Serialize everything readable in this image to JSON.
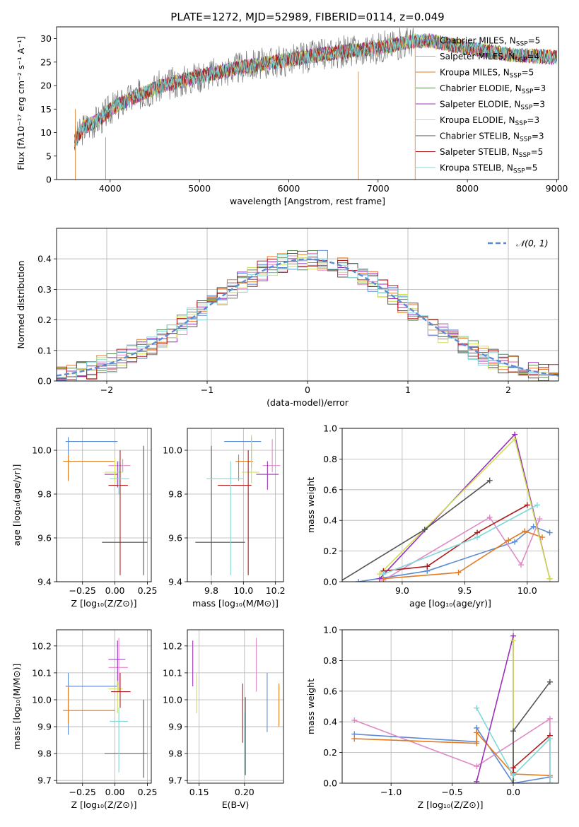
{
  "figure": {
    "title": "PLATE=1272, MJD=52989, FIBERID=0114, z=0.049"
  },
  "models": [
    {
      "name": "Chabrier MILES",
      "nssp": "5",
      "color": "#5b8bd6"
    },
    {
      "name": "Salpeter MILES",
      "nssp": "4",
      "color": "#e08ac8"
    },
    {
      "name": "Kroupa MILES",
      "nssp": "5",
      "color": "#e07b22"
    },
    {
      "name": "Chabrier ELODIE",
      "nssp": "3",
      "color": "#5e8a55"
    },
    {
      "name": "Salpeter ELODIE",
      "nssp": "3",
      "color": "#9b30b8"
    },
    {
      "name": "Kroupa ELODIE",
      "nssp": "3",
      "color": "#cfe055"
    },
    {
      "name": "Chabrier STELIB",
      "nssp": "3",
      "color": "#555555"
    },
    {
      "name": "Salpeter STELIB",
      "nssp": "5",
      "color": "#b01a1a"
    },
    {
      "name": "Kroupa STELIB",
      "nssp": "5",
      "color": "#7fd8d8"
    }
  ],
  "chart_data": [
    {
      "id": "spectrum",
      "type": "line",
      "xlabel": "wavelength [Angstrom, rest frame]",
      "ylabel": "Flux [fλ10⁻¹⁷ erg cm⁻² s⁻¹ A⁻¹]",
      "xlim": [
        3400,
        9020
      ],
      "ylim": [
        0,
        32.5
      ],
      "xticks": [
        4000,
        5000,
        6000,
        7000,
        8000,
        9000
      ],
      "yticks": [
        0,
        5,
        10,
        15,
        20,
        25,
        30
      ],
      "grid": false,
      "legend": "right",
      "model_continuum": {
        "x": [
          3600,
          3700,
          3900,
          4000,
          4200,
          4500,
          5000,
          5500,
          6000,
          6500,
          7000,
          7400,
          7600,
          8000,
          8500,
          9000
        ],
        "y": [
          8,
          11,
          13,
          15,
          17,
          19.5,
          22,
          24,
          25.5,
          27,
          28,
          29.5,
          29.5,
          28,
          26.5,
          26
        ]
      },
      "data_range": [
        3600,
        7420
      ]
    },
    {
      "id": "residuals",
      "type": "line",
      "xlabel": "(data-model)/error",
      "ylabel": "Normed distribution",
      "xlim": [
        -2.5,
        2.5
      ],
      "ylim": [
        0,
        0.5
      ],
      "xticks": [
        -2,
        -1,
        0,
        1,
        2
      ],
      "yticks": [
        0.0,
        0.1,
        0.2,
        0.3,
        0.4
      ],
      "grid": true,
      "legend": "top-right",
      "reference_label": "𝒩(0, 1)",
      "reference_color": "#5b8bd6"
    },
    {
      "id": "age-vs-Z",
      "type": "scatter",
      "xlabel": "Z [log₁₀(Z/Z⊙)]",
      "ylabel": "age  [log₁₀(age/yr)]",
      "xlim": [
        -0.45,
        0.28
      ],
      "ylim": [
        9.4,
        10.1
      ],
      "xticks": [
        -0.25,
        0.0,
        0.25
      ],
      "yticks": [
        9.4,
        9.6,
        9.8,
        10.0
      ],
      "grid": true,
      "points": [
        {
          "m": 0,
          "x": -0.36,
          "y": 10.04,
          "xe": [
            -0.38,
            0.02
          ],
          "ye": [
            9.92,
            10.06
          ]
        },
        {
          "m": 1,
          "x": 0.06,
          "y": 9.93,
          "xe": [
            -0.05,
            0.12
          ],
          "ye": [
            9.9,
            9.96
          ]
        },
        {
          "m": 2,
          "x": -0.36,
          "y": 9.95,
          "xe": [
            -0.4,
            0.0
          ],
          "ye": [
            9.86,
            9.98
          ]
        },
        {
          "m": 4,
          "x": 0.02,
          "y": 9.89,
          "xe": [
            -0.08,
            0.02
          ],
          "ye": [
            9.83,
            9.95
          ]
        },
        {
          "m": 5,
          "x": 0.0,
          "y": 9.9,
          "xe": [
            -0.08,
            0.06
          ],
          "ye": [
            9.85,
            9.96
          ]
        },
        {
          "m": 6,
          "x": 0.22,
          "y": 9.58,
          "xe": [
            -0.1,
            0.25
          ],
          "ye": [
            9.43,
            10.02
          ]
        },
        {
          "m": 7,
          "x": 0.04,
          "y": 9.84,
          "xe": [
            -0.05,
            0.1
          ],
          "ye": [
            9.43,
            10.0
          ]
        },
        {
          "m": 8,
          "x": 0.03,
          "y": 9.87,
          "xe": [
            -0.04,
            0.11
          ],
          "ye": [
            9.8,
            9.95
          ]
        }
      ]
    },
    {
      "id": "age-vs-mass",
      "type": "scatter",
      "xlabel": "mass [log₁₀(M/M⊙)]",
      "ylabel": "",
      "xlim": [
        9.65,
        10.25
      ],
      "ylim": [
        9.4,
        10.1
      ],
      "xticks": [
        9.8,
        10.0,
        10.2
      ],
      "yticks": [
        9.4,
        9.6,
        9.8,
        10.0
      ],
      "grid": true,
      "points": [
        {
          "m": 0,
          "x": 10.05,
          "y": 10.04,
          "xe": [
            9.88,
            10.11
          ],
          "ye": [
            9.92,
            10.06
          ]
        },
        {
          "m": 1,
          "x": 10.18,
          "y": 9.93,
          "xe": [
            10.12,
            10.23
          ],
          "ye": [
            9.9,
            10.05
          ]
        },
        {
          "m": 2,
          "x": 9.97,
          "y": 9.95,
          "xe": [
            9.95,
            10.06
          ],
          "ye": [
            9.86,
            9.98
          ]
        },
        {
          "m": 4,
          "x": 10.15,
          "y": 9.89,
          "xe": [
            10.08,
            10.22
          ],
          "ye": [
            9.82,
            9.95
          ]
        },
        {
          "m": 5,
          "x": 10.05,
          "y": 9.9,
          "xe": [
            9.99,
            10.1
          ],
          "ye": [
            9.85,
            10.07
          ]
        },
        {
          "m": 6,
          "x": 9.8,
          "y": 9.58,
          "xe": [
            9.7,
            10.01
          ],
          "ye": [
            9.43,
            10.02
          ]
        },
        {
          "m": 7,
          "x": 10.03,
          "y": 9.84,
          "xe": [
            9.84,
            10.05
          ],
          "ye": [
            9.43,
            10.0
          ]
        },
        {
          "m": 8,
          "x": 9.92,
          "y": 9.87,
          "xe": [
            9.77,
            10.0
          ],
          "ye": [
            9.43,
            9.95
          ]
        }
      ]
    },
    {
      "id": "weight-vs-age",
      "type": "line",
      "xlabel": "age  [log₁₀(age/yr)]",
      "ylabel": "mass weight",
      "xlim": [
        8.52,
        10.25
      ],
      "ylim": [
        0,
        1.0
      ],
      "xticks": [
        9.0,
        9.5,
        10.0
      ],
      "yticks": [
        0.0,
        0.2,
        0.4,
        0.6,
        0.8,
        1.0
      ],
      "grid": true,
      "series": [
        {
          "m": 0,
          "x": [
            8.65,
            9.2,
            9.9,
            10.05,
            10.18
          ],
          "y": [
            0.0,
            0.07,
            0.26,
            0.36,
            0.32
          ]
        },
        {
          "m": 1,
          "x": [
            8.85,
            9.7,
            9.95,
            10.1
          ],
          "y": [
            0.01,
            0.42,
            0.11,
            0.41
          ]
        },
        {
          "m": 2,
          "x": [
            8.85,
            9.45,
            9.85,
            9.98,
            10.12
          ],
          "y": [
            0.02,
            0.06,
            0.27,
            0.33,
            0.29
          ]
        },
        {
          "m": 4,
          "x": [
            8.82,
            9.9,
            10.18
          ],
          "y": [
            0.02,
            0.96,
            0.02
          ]
        },
        {
          "m": 5,
          "x": [
            8.82,
            9.9,
            10.18
          ],
          "y": [
            0.05,
            0.93,
            0.02
          ]
        },
        {
          "m": 6,
          "x": [
            8.5,
            9.18,
            9.7
          ],
          "y": [
            0.0,
            0.34,
            0.66
          ]
        },
        {
          "m": 7,
          "x": [
            8.85,
            9.2,
            9.6,
            10.0
          ],
          "y": [
            0.07,
            0.1,
            0.32,
            0.5
          ]
        },
        {
          "m": 8,
          "x": [
            8.85,
            9.6,
            10.08
          ],
          "y": [
            0.05,
            0.29,
            0.5
          ]
        }
      ]
    },
    {
      "id": "mass-vs-Z",
      "type": "scatter",
      "xlabel": "Z [log₁₀(Z/Z⊙)]",
      "ylabel": "mass [log₁₀(M/M⊙)]",
      "xlim": [
        -0.45,
        0.28
      ],
      "ylim": [
        9.69,
        10.26
      ],
      "xticks": [
        -0.25,
        0.0,
        0.25
      ],
      "yticks": [
        9.7,
        9.8,
        9.9,
        10.0,
        10.1,
        10.2
      ],
      "grid": true,
      "points": [
        {
          "m": 0,
          "x": -0.36,
          "y": 10.05,
          "xe": [
            -0.38,
            0.02
          ],
          "ye": [
            9.87,
            10.1
          ]
        },
        {
          "m": 1,
          "x": 0.03,
          "y": 10.12,
          "xe": [
            -0.05,
            0.1
          ],
          "ye": [
            10.03,
            10.23
          ]
        },
        {
          "m": 2,
          "x": -0.36,
          "y": 9.96,
          "xe": [
            -0.4,
            0.0
          ],
          "ye": [
            9.91,
            10.05
          ]
        },
        {
          "m": 4,
          "x": 0.02,
          "y": 10.15,
          "xe": [
            -0.05,
            0.08
          ],
          "ye": [
            10.05,
            10.22
          ]
        },
        {
          "m": 5,
          "x": 0.02,
          "y": 10.04,
          "xe": [
            -0.05,
            0.06
          ],
          "ye": [
            9.95,
            10.07
          ]
        },
        {
          "m": 6,
          "x": 0.22,
          "y": 9.8,
          "xe": [
            -0.08,
            0.25
          ],
          "ye": [
            9.71,
            10.0
          ]
        },
        {
          "m": 7,
          "x": 0.04,
          "y": 10.03,
          "xe": [
            -0.03,
            0.12
          ],
          "ye": [
            9.97,
            10.1
          ]
        },
        {
          "m": 8,
          "x": 0.03,
          "y": 9.92,
          "xe": [
            -0.04,
            0.1
          ],
          "ye": [
            9.73,
            9.97
          ]
        }
      ]
    },
    {
      "id": "mass-vs-EBV",
      "type": "scatter",
      "xlabel": "E(B-V)",
      "ylabel": "",
      "xlim": [
        0.137,
        0.243
      ],
      "ylim": [
        9.69,
        10.26
      ],
      "xticks": [
        0.15,
        0.2
      ],
      "yticks": [
        9.7,
        9.8,
        9.9,
        10.0,
        10.1,
        10.2
      ],
      "grid": true,
      "points": [
        {
          "m": 0,
          "x": 0.225,
          "y": 10.05,
          "ye": [
            9.88,
            10.1
          ]
        },
        {
          "m": 1,
          "x": 0.213,
          "y": 10.12,
          "ye": [
            10.03,
            10.23
          ]
        },
        {
          "m": 2,
          "x": 0.238,
          "y": 9.96,
          "ye": [
            9.9,
            10.06
          ]
        },
        {
          "m": 4,
          "x": 0.143,
          "y": 10.15,
          "ye": [
            10.05,
            10.22
          ]
        },
        {
          "m": 5,
          "x": 0.147,
          "y": 10.04,
          "ye": [
            9.95,
            10.1
          ]
        },
        {
          "m": 6,
          "x": 0.201,
          "y": 9.8,
          "ye": [
            9.72,
            10.01
          ]
        },
        {
          "m": 7,
          "x": 0.198,
          "y": 9.95,
          "ye": [
            9.84,
            10.06
          ]
        },
        {
          "m": 8,
          "x": 0.2,
          "y": 9.85,
          "ye": [
            9.72,
            9.95
          ]
        }
      ]
    },
    {
      "id": "weight-vs-Z",
      "type": "line",
      "xlabel": "Z [log₁₀(Z/Z⊙)]",
      "ylabel": "mass weight",
      "xlim": [
        -1.4,
        0.37
      ],
      "ylim": [
        0,
        1.0
      ],
      "xticks": [
        -1.0,
        -0.5,
        0.0
      ],
      "yticks": [
        0.0,
        0.2,
        0.4,
        0.6,
        0.8,
        1.0
      ],
      "grid": true,
      "series": [
        {
          "m": 0,
          "x": [
            -1.3,
            -0.3,
            -0.3,
            0.0,
            0.3
          ],
          "y": [
            0.32,
            0.27,
            0.36,
            0.0,
            0.04
          ]
        },
        {
          "m": 1,
          "x": [
            -1.3,
            -0.3,
            0.3,
            0.3
          ],
          "y": [
            0.41,
            0.11,
            0.42,
            0.0
          ]
        },
        {
          "m": 2,
          "x": [
            -1.3,
            -0.3,
            -0.3,
            0.0,
            0.3
          ],
          "y": [
            0.29,
            0.26,
            0.33,
            0.06,
            0.05
          ]
        },
        {
          "m": 4,
          "x": [
            -0.3,
            0.0,
            0.0
          ],
          "y": [
            0.01,
            0.96,
            0.02
          ]
        },
        {
          "m": 5,
          "x": [
            0.0,
            0.0,
            0.0
          ],
          "y": [
            0.05,
            0.93,
            0.02
          ]
        },
        {
          "m": 6,
          "x": [
            0.0,
            0.0,
            0.3
          ],
          "y": [
            0.0,
            0.34,
            0.66
          ]
        },
        {
          "m": 7,
          "x": [
            0.0,
            0.0,
            0.3
          ],
          "y": [
            0.07,
            0.1,
            0.31
          ]
        },
        {
          "m": 8,
          "x": [
            -0.3,
            0.0,
            0.3,
            0.3
          ],
          "y": [
            0.49,
            0.05,
            0.29,
            0.0
          ]
        }
      ]
    }
  ]
}
